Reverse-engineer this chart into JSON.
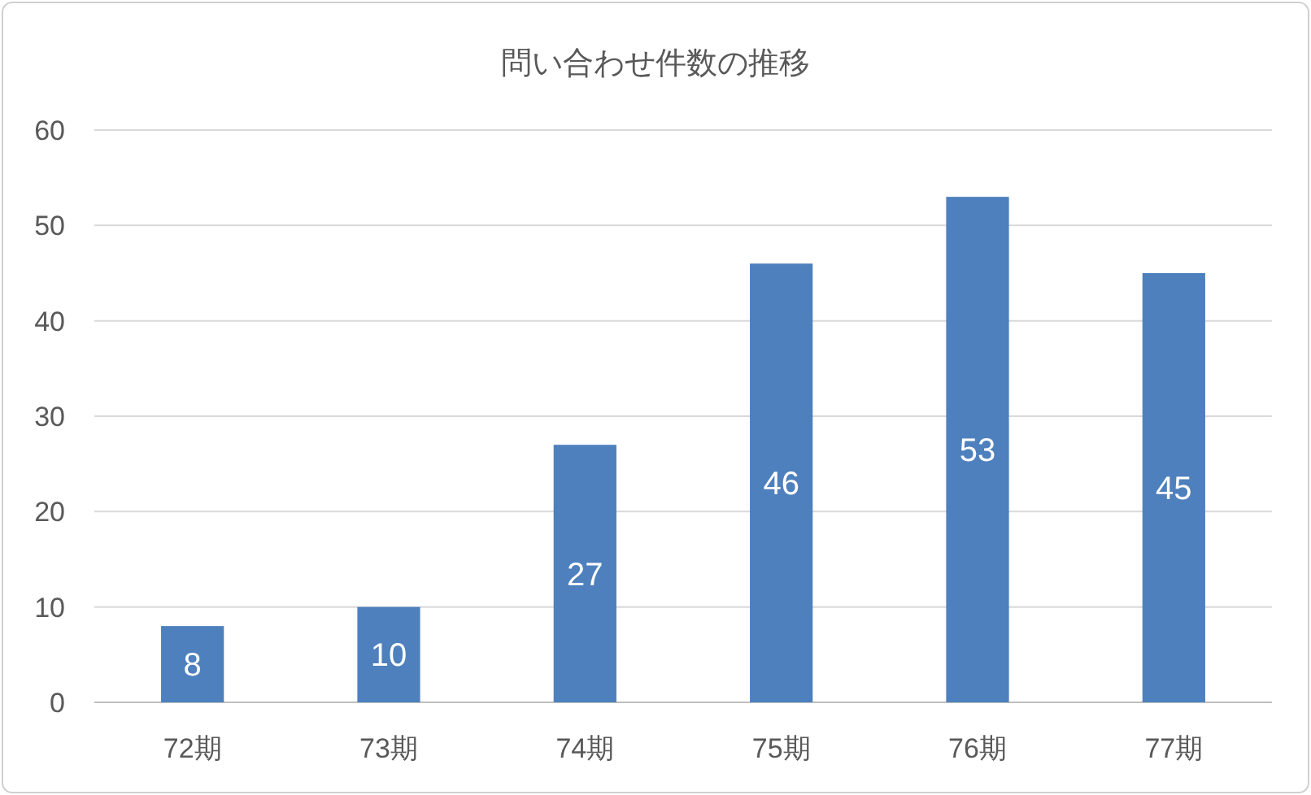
{
  "chart_data": {
    "type": "bar",
    "title": "問い合わせ件数の推移",
    "categories": [
      "72期",
      "73期",
      "74期",
      "75期",
      "76期",
      "77期"
    ],
    "values": [
      8,
      10,
      27,
      46,
      53,
      45
    ],
    "color": "#4e80bd",
    "ylim": [
      0,
      60
    ],
    "yticks": [
      0,
      10,
      20,
      30,
      40,
      50,
      60
    ],
    "grid": "y",
    "data_labels": true
  }
}
